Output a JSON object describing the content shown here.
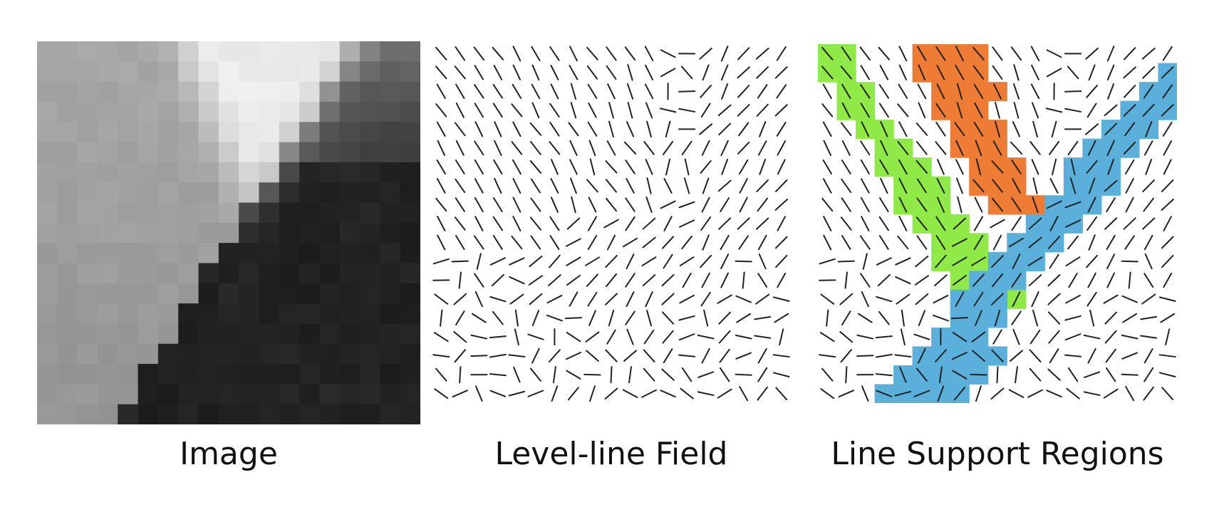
{
  "panels": [
    {
      "caption": "Image"
    },
    {
      "caption": "Level-line Field"
    },
    {
      "caption": "Line Support Regions"
    }
  ],
  "colors": {
    "background": "#ffffff",
    "line": "#222222",
    "region_green": "#8fea47",
    "region_orange": "#ee7c35",
    "region_blue": "#5aafdb"
  }
}
